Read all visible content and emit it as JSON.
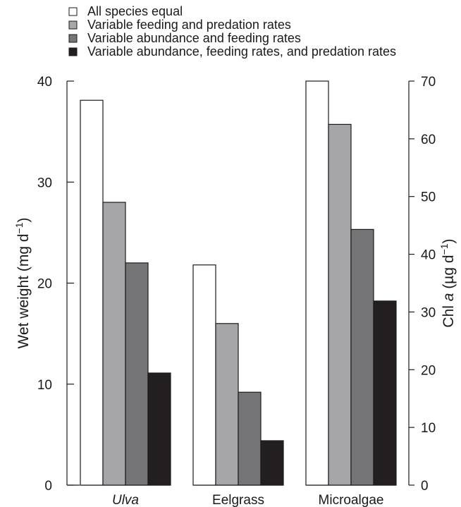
{
  "chart_data": {
    "type": "bar",
    "categories": [
      "Ulva",
      "Eelgrass",
      "Microalgae"
    ],
    "category_italic": [
      true,
      false,
      false
    ],
    "series": [
      {
        "name": "All species equal",
        "color": "#ffffff",
        "values": [
          38.1,
          21.8,
          70.0
        ]
      },
      {
        "name": "Variable feeding and predation rates",
        "color": "#a6a6a9",
        "values": [
          28.0,
          16.0,
          62.5
        ]
      },
      {
        "name": "Variable abundance and feeding rates",
        "color": "#757578",
        "values": [
          22.0,
          9.2,
          44.3
        ]
      },
      {
        "name": "Variable abundance, feeding rates, and predation rates",
        "color": "#231f20",
        "values": [
          11.1,
          4.4,
          31.9
        ]
      }
    ],
    "value_axis": [
      "left",
      "left",
      "right"
    ],
    "left_axis": {
      "label": "Wet weight (mg d",
      "label_sup": "−1",
      "label_end": ")",
      "ylim": [
        0,
        40
      ],
      "ticks": [
        0,
        10,
        20,
        30,
        40
      ]
    },
    "right_axis": {
      "label": "Chl a (µg d",
      "label_italic_part": "a",
      "label_sup": "−1",
      "label_end": ")",
      "ylim": [
        0,
        70
      ],
      "ticks": [
        0,
        10,
        20,
        30,
        40,
        50,
        60,
        70
      ]
    },
    "legend_position": "top-left",
    "grid": false
  }
}
